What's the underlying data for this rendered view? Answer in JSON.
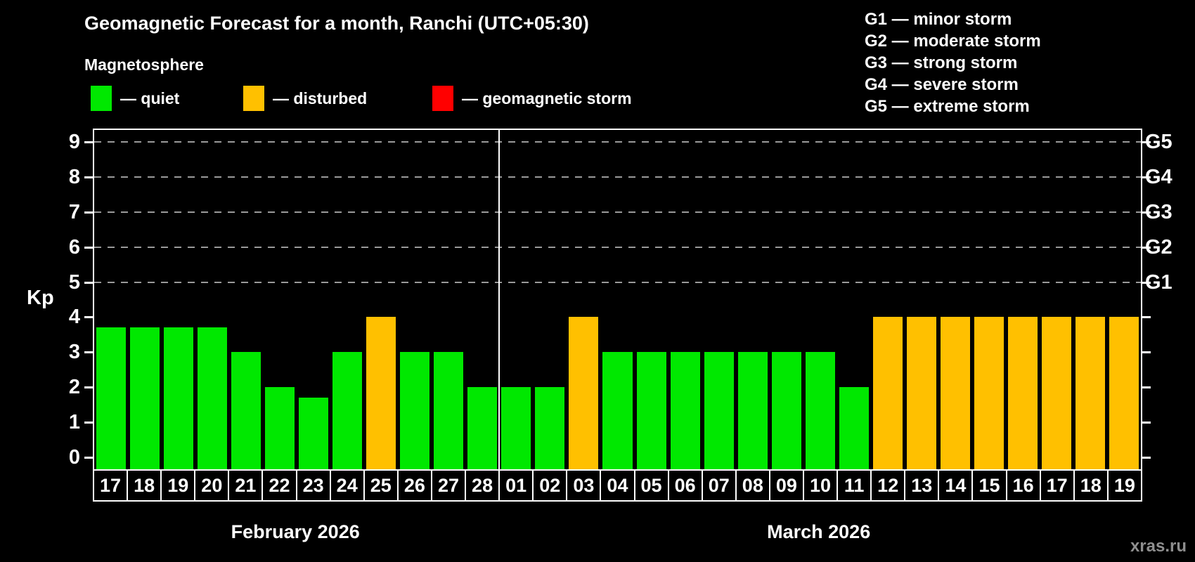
{
  "title": "Geomagnetic Forecast for a month, Ranchi (UTC+05:30)",
  "subtitle": "Magnetosphere",
  "legend": {
    "quiet": {
      "label": "— quiet",
      "color": "#00e800"
    },
    "disturbed": {
      "label": "— disturbed",
      "color": "#ffc000"
    },
    "storm": {
      "label": "— geomagnetic storm",
      "color": "#ff0000"
    }
  },
  "g_scale_legend": [
    "G1 — minor storm",
    "G2 — moderate storm",
    "G3 — strong storm",
    "G4 — severe storm",
    "G5 — extreme storm"
  ],
  "watermark": "xras.ru",
  "chart_data": {
    "type": "bar",
    "ylabel": "Kp",
    "ylim": [
      0,
      9
    ],
    "yticks": [
      0,
      1,
      2,
      3,
      4,
      5,
      6,
      7,
      8,
      9
    ],
    "gridlines_at": [
      5,
      6,
      7,
      8,
      9
    ],
    "grid_style": "dashed",
    "legend_position": "top",
    "right_axis_labels": [
      {
        "kp": 5,
        "label": "G1"
      },
      {
        "kp": 6,
        "label": "G2"
      },
      {
        "kp": 7,
        "label": "G3"
      },
      {
        "kp": 8,
        "label": "G4"
      },
      {
        "kp": 9,
        "label": "G5"
      }
    ],
    "status_colors": {
      "quiet": "#00e800",
      "disturbed": "#ffc000",
      "storm": "#ff0000"
    },
    "months": [
      {
        "label": "February 2026",
        "days": [
          {
            "day": "17",
            "kp": 3.7,
            "status": "quiet"
          },
          {
            "day": "18",
            "kp": 3.7,
            "status": "quiet"
          },
          {
            "day": "19",
            "kp": 3.7,
            "status": "quiet"
          },
          {
            "day": "20",
            "kp": 3.7,
            "status": "quiet"
          },
          {
            "day": "21",
            "kp": 3,
            "status": "quiet"
          },
          {
            "day": "22",
            "kp": 2,
            "status": "quiet"
          },
          {
            "day": "23",
            "kp": 1.7,
            "status": "quiet"
          },
          {
            "day": "24",
            "kp": 3,
            "status": "quiet"
          },
          {
            "day": "25",
            "kp": 4,
            "status": "disturbed"
          },
          {
            "day": "26",
            "kp": 3,
            "status": "quiet"
          },
          {
            "day": "27",
            "kp": 3,
            "status": "quiet"
          },
          {
            "day": "28",
            "kp": 2,
            "status": "quiet"
          }
        ]
      },
      {
        "label": "March 2026",
        "days": [
          {
            "day": "01",
            "kp": 2,
            "status": "quiet"
          },
          {
            "day": "02",
            "kp": 2,
            "status": "quiet"
          },
          {
            "day": "03",
            "kp": 4,
            "status": "disturbed"
          },
          {
            "day": "04",
            "kp": 3,
            "status": "quiet"
          },
          {
            "day": "05",
            "kp": 3,
            "status": "quiet"
          },
          {
            "day": "06",
            "kp": 3,
            "status": "quiet"
          },
          {
            "day": "07",
            "kp": 3,
            "status": "quiet"
          },
          {
            "day": "08",
            "kp": 3,
            "status": "quiet"
          },
          {
            "day": "09",
            "kp": 3,
            "status": "quiet"
          },
          {
            "day": "10",
            "kp": 3,
            "status": "quiet"
          },
          {
            "day": "11",
            "kp": 2,
            "status": "quiet"
          },
          {
            "day": "12",
            "kp": 4,
            "status": "disturbed"
          },
          {
            "day": "13",
            "kp": 4,
            "status": "disturbed"
          },
          {
            "day": "14",
            "kp": 4,
            "status": "disturbed"
          },
          {
            "day": "15",
            "kp": 4,
            "status": "disturbed"
          },
          {
            "day": "16",
            "kp": 4,
            "status": "disturbed"
          },
          {
            "day": "17",
            "kp": 4,
            "status": "disturbed"
          },
          {
            "day": "18",
            "kp": 4,
            "status": "disturbed"
          },
          {
            "day": "19",
            "kp": 4,
            "status": "disturbed"
          }
        ]
      }
    ]
  }
}
